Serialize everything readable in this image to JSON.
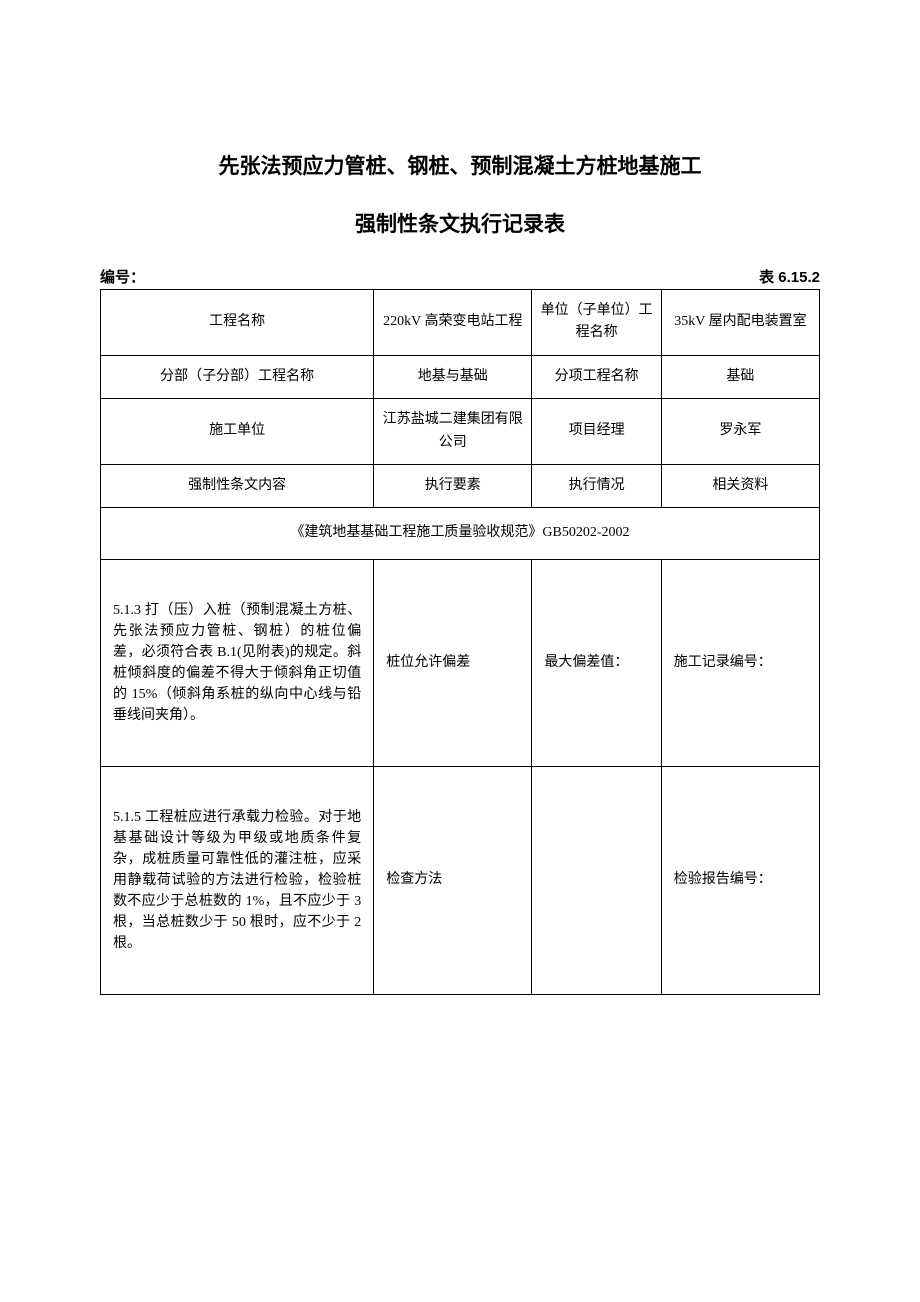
{
  "title_line1": "先张法预应力管桩、钢桩、预制混凝土方桩地基施工",
  "title_line2": "强制性条文执行记录表",
  "header": {
    "left_label": "编号：",
    "right_label": "表 6.15.2"
  },
  "table": {
    "row1": {
      "c1": "工程名称",
      "c2": "220kV 高荣变电站工程",
      "c3": "单位（子单位）工程名称",
      "c4": "35kV 屋内配电装置室"
    },
    "row2": {
      "c1": "分部（子分部）工程名称",
      "c2": "地基与基础",
      "c3": "分项工程名称",
      "c4": "基础"
    },
    "row3": {
      "c1": "施工单位",
      "c2": "江苏盐城二建集团有限公司",
      "c3": "项目经理",
      "c4": "罗永军"
    },
    "row4": {
      "c1": "强制性条文内容",
      "c2": "执行要素",
      "c3": "执行情况",
      "c4": "相关资料"
    },
    "row5": {
      "text": "《建筑地基基础工程施工质量验收规范》GB50202-2002"
    },
    "row6": {
      "c1": "5.1.3  打（压）入桩（预制混凝土方桩、先张法预应力管桩、钢桩）的桩位偏差，必须符合表 B.1(见附表)的规定。斜桩倾斜度的偏差不得大于倾斜角正切值的 15%（倾斜角系桩的纵向中心线与铅垂线间夹角）。",
      "c2": "桩位允许偏差",
      "c3": "最大偏差值：",
      "c4": "施工记录编号："
    },
    "row7": {
      "c1": "5.1.5  工程桩应进行承载力检验。对于地基基础设计等级为甲级或地质条件复杂，成桩质量可靠性低的灌注桩，应采用静载荷试验的方法进行检验，检验桩数不应少于总桩数的 1%，且不应少于 3 根，当总桩数少于 50 根时，应不少于 2 根。",
      "c2": "检查方法",
      "c3": "",
      "c4": "检验报告编号："
    }
  },
  "styling": {
    "background_color": "#ffffff",
    "border_color": "#000000",
    "text_color": "#000000",
    "title_fontsize": 21,
    "body_fontsize": 14,
    "header_fontsize": 15,
    "font_family_title": "SimHei",
    "font_family_body": "SimSun",
    "column_widths_pct": [
      38,
      22,
      18,
      22
    ]
  }
}
